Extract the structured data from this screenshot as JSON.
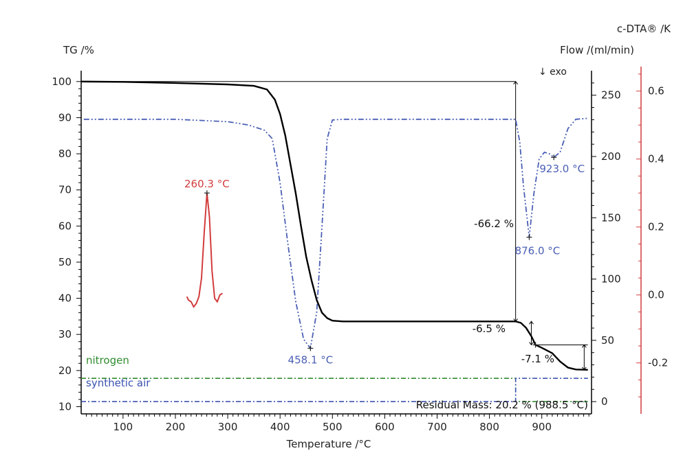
{
  "chart_data": {
    "type": "line",
    "title": "",
    "xlabel": "Temperature /°C",
    "ylabel_left": "TG /%",
    "ylabel_right_flow": "Flow /(ml/min)",
    "ylabel_right_dta": "c-DTA® /K",
    "exo_note": "↓ exo",
    "xlim": [
      20,
      995
    ],
    "x_ticks": [
      100,
      200,
      300,
      400,
      500,
      600,
      700,
      800,
      900
    ],
    "tg_ylim": [
      8,
      103
    ],
    "tg_ticks": [
      10,
      20,
      30,
      40,
      50,
      60,
      70,
      80,
      90,
      100
    ],
    "flow_ylim": [
      -10,
      270
    ],
    "flow_ticks": [
      0,
      50,
      100,
      150,
      200,
      250
    ],
    "dta_ylim": [
      -0.35,
      0.66
    ],
    "dta_ticks": [
      -0.2,
      0.0,
      0.2,
      0.4,
      0.6
    ],
    "colors": {
      "tg": "#000000",
      "dta_air": "#4a5fb4",
      "dta_nitrogen": "#d23c3c",
      "nitrogen": "#2e8b2e",
      "synthetic_air": "#3b52b0",
      "dta_axis": "#d23c3c"
    },
    "series": [
      {
        "key": "tg",
        "points": [
          [
            20,
            100
          ],
          [
            100,
            99.9
          ],
          [
            200,
            99.6
          ],
          [
            300,
            99.2
          ],
          [
            350,
            98.8
          ],
          [
            375,
            97.8
          ],
          [
            390,
            95
          ],
          [
            400,
            91
          ],
          [
            410,
            85
          ],
          [
            420,
            77
          ],
          [
            430,
            69
          ],
          [
            440,
            60
          ],
          [
            450,
            51.5
          ],
          [
            460,
            45
          ],
          [
            470,
            39.5
          ],
          [
            480,
            36
          ],
          [
            490,
            34.5
          ],
          [
            500,
            33.8
          ],
          [
            520,
            33.6
          ],
          [
            600,
            33.6
          ],
          [
            700,
            33.6
          ],
          [
            800,
            33.6
          ],
          [
            850,
            33.6
          ],
          [
            860,
            33.2
          ],
          [
            870,
            31.8
          ],
          [
            880,
            29.5
          ],
          [
            888,
            27.1
          ],
          [
            900,
            26.3
          ],
          [
            920,
            24.8
          ],
          [
            935,
            22.5
          ],
          [
            950,
            20.8
          ],
          [
            965,
            20.3
          ],
          [
            988,
            20.2
          ]
        ]
      },
      {
        "key": "dta_air",
        "points": [
          [
            25,
            0.517
          ],
          [
            100,
            0.517
          ],
          [
            200,
            0.517
          ],
          [
            300,
            0.51
          ],
          [
            340,
            0.5
          ],
          [
            370,
            0.485
          ],
          [
            385,
            0.46
          ],
          [
            400,
            0.33
          ],
          [
            415,
            0.15
          ],
          [
            430,
            -0.02
          ],
          [
            445,
            -0.13
          ],
          [
            458,
            -0.157
          ],
          [
            470,
            -0.05
          ],
          [
            480,
            0.2
          ],
          [
            490,
            0.46
          ],
          [
            500,
            0.515
          ],
          [
            520,
            0.517
          ],
          [
            700,
            0.517
          ],
          [
            850,
            0.517
          ],
          [
            858,
            0.45
          ],
          [
            865,
            0.32
          ],
          [
            876,
            0.17
          ],
          [
            885,
            0.3
          ],
          [
            895,
            0.4
          ],
          [
            905,
            0.42
          ],
          [
            915,
            0.415
          ],
          [
            923,
            0.405
          ],
          [
            935,
            0.42
          ],
          [
            950,
            0.49
          ],
          [
            965,
            0.517
          ],
          [
            990,
            0.52
          ]
        ]
      },
      {
        "key": "dta_nitrogen",
        "points": [
          [
            222,
            -0.005
          ],
          [
            225,
            -0.015
          ],
          [
            230,
            -0.02
          ],
          [
            235,
            -0.035
          ],
          [
            240,
            -0.025
          ],
          [
            245,
            -0.005
          ],
          [
            250,
            0.05
          ],
          [
            255,
            0.18
          ],
          [
            260.3,
            0.3
          ],
          [
            265,
            0.23
          ],
          [
            270,
            0.07
          ],
          [
            275,
            -0.01
          ],
          [
            280,
            -0.02
          ],
          [
            285,
            0.0
          ],
          [
            290,
            0.005
          ]
        ]
      }
    ],
    "gas_flow": {
      "nitrogen": [
        [
          20,
          19
        ],
        [
          850,
          19
        ],
        [
          850,
          0
        ],
        [
          988,
          0
        ]
      ],
      "synthetic_air": [
        [
          20,
          0
        ],
        [
          850,
          0
        ],
        [
          850,
          19
        ],
        [
          988,
          19
        ]
      ]
    },
    "labels": {
      "peak_458": "458.1 °C",
      "peak_876": "876.0 °C",
      "peak_923": "923.0 °C",
      "peak_260": "260.3 °C",
      "step1": "-66.2 %",
      "step2": "-6.5 %",
      "step3": "-7.1 %",
      "residual": "Residual Mass: 20.2 % (988.5 °C)",
      "nitrogen": "nitrogen",
      "synthetic_air": "synthetic air"
    },
    "annotations": {
      "peak_points_dta_air": [
        [
          458.1,
          -0.157
        ],
        [
          876.0,
          0.17
        ],
        [
          923.0,
          0.405
        ]
      ],
      "peak_point_dta_nitrogen": [
        260.3,
        0.3
      ],
      "step_points_tg": [
        [
          888,
          27.1
        ]
      ],
      "reference_lines_tg": [
        {
          "from": [
            20,
            100
          ],
          "to": [
            850,
            100
          ]
        },
        {
          "from": [
            760,
            33.6
          ],
          "to": [
            850,
            33.6
          ]
        },
        {
          "from": [
            888,
            27.1
          ],
          "to": [
            988,
            27.1
          ]
        }
      ],
      "step_arrows_tg": [
        {
          "x": 850,
          "from": 100,
          "to": 33.6
        },
        {
          "x": 880,
          "from": 33.6,
          "to": 27.1
        },
        {
          "x": 981,
          "from": 27.1,
          "to": 20.2
        }
      ]
    }
  }
}
